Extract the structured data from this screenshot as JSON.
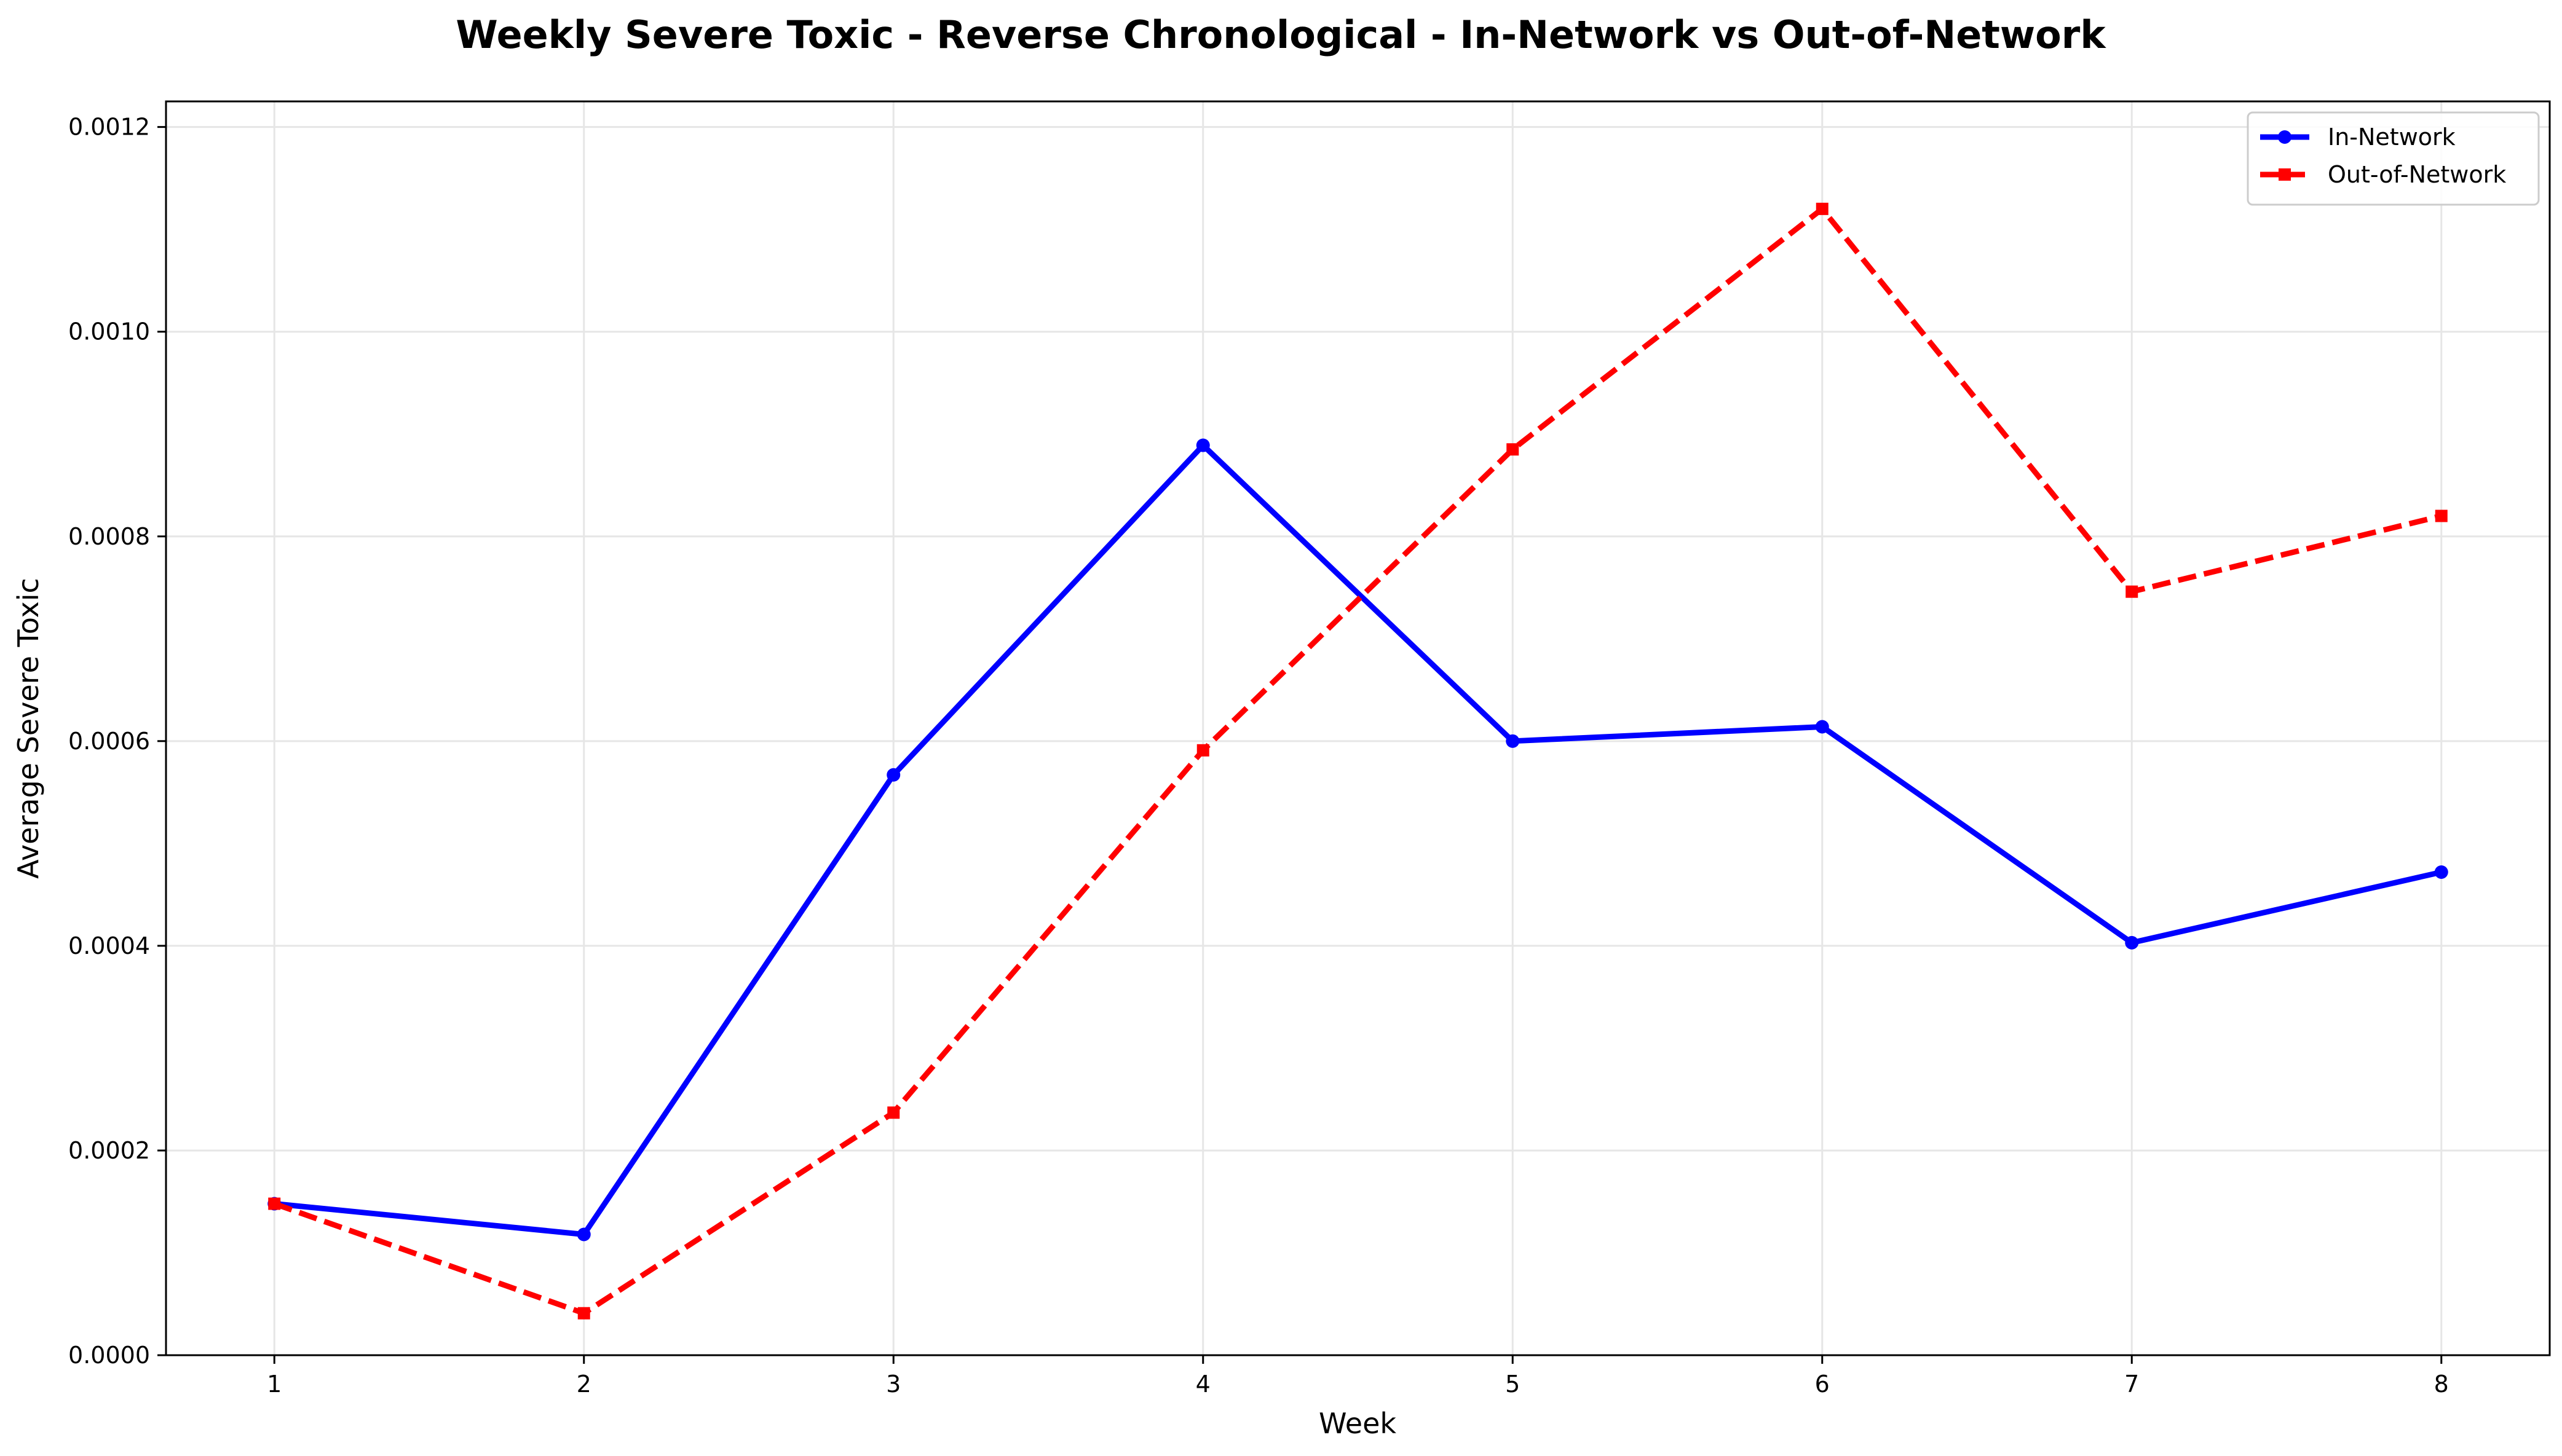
{
  "chart_data": {
    "type": "line",
    "title": "Weekly Severe Toxic - Reverse Chronological - In-Network vs Out-of-Network",
    "xlabel": "Week",
    "ylabel": "Average Severe Toxic",
    "x": [
      1,
      2,
      3,
      4,
      5,
      6,
      7,
      8
    ],
    "x_tick_labels": [
      "1",
      "2",
      "3",
      "4",
      "5",
      "6",
      "7",
      "8"
    ],
    "xlim": [
      0.65,
      8.35
    ],
    "ylim": [
      0,
      0.001225
    ],
    "y_ticks": [
      0,
      0.0002,
      0.0004,
      0.0006,
      0.0008,
      0.001,
      0.0012
    ],
    "y_tick_labels": [
      "0.0000",
      "0.0002",
      "0.0004",
      "0.0006",
      "0.0008",
      "0.0010",
      "0.0012"
    ],
    "grid": true,
    "legend_position": "top-right",
    "series": [
      {
        "name": "In-Network",
        "color": "#0000ff",
        "style": "solid",
        "marker": "circle",
        "values": [
          0.000148,
          0.000118,
          0.000567,
          0.000889,
          0.0006,
          0.000614,
          0.000403,
          0.000472
        ]
      },
      {
        "name": "Out-of-Network",
        "color": "#ff0000",
        "style": "dashed",
        "marker": "square",
        "values": [
          0.000148,
          4.1e-05,
          0.000237,
          0.000591,
          0.000885,
          0.00112,
          0.000746,
          0.00082
        ]
      }
    ]
  }
}
